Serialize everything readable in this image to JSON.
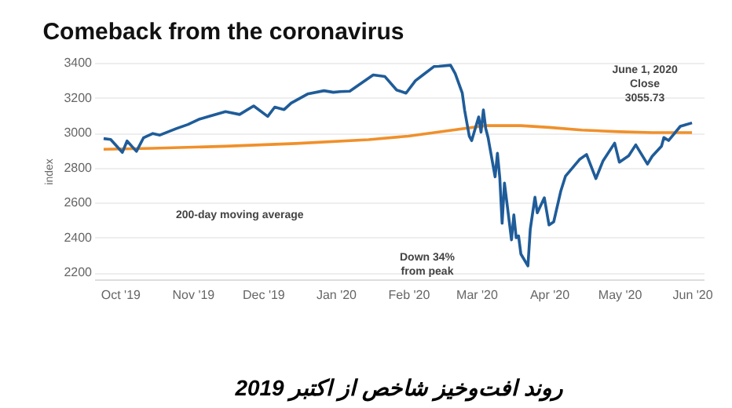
{
  "chart_data": {
    "type": "line",
    "title": "Comeback from the coronavirus",
    "ylabel": "index",
    "xlim": [
      "2019-09-20",
      "2020-06-06"
    ],
    "xticks": [
      {
        "value": "2019-10-01",
        "label": "Oct '19"
      },
      {
        "value": "2019-11-01",
        "label": "Nov '19"
      },
      {
        "value": "2019-12-01",
        "label": "Dec '19"
      },
      {
        "value": "2020-01-01",
        "label": "Jan '20"
      },
      {
        "value": "2020-02-01",
        "label": "Feb '20"
      },
      {
        "value": "2020-03-01",
        "label": "Mar '20"
      },
      {
        "value": "2020-04-01",
        "label": "Apr '20"
      },
      {
        "value": "2020-05-01",
        "label": "May '20"
      },
      {
        "value": "2020-06-01",
        "label": "Jun '20"
      }
    ],
    "ylim": [
      2160,
      3400
    ],
    "yticks": [
      2200,
      2400,
      2600,
      2800,
      3000,
      3200,
      3400
    ],
    "grid": "y",
    "legend": false,
    "line_style": "solid",
    "marker": "none",
    "series": [
      {
        "color": "#f0902a",
        "x": [
          "2019-09-24",
          "2019-10-15",
          "2019-11-15",
          "2019-12-15",
          "2020-01-15",
          "2020-02-01",
          "2020-02-20",
          "2020-03-05",
          "2020-03-20",
          "2020-04-01",
          "2020-04-15",
          "2020-05-01",
          "2020-05-15",
          "2020-06-01"
        ],
        "values": [
          2905,
          2910,
          2922,
          2938,
          2960,
          2980,
          3015,
          3040,
          3040,
          3030,
          3015,
          3005,
          3000,
          3000
        ]
      },
      {
        "color": "#1f5c99",
        "x": [
          "2019-09-24",
          "2019-09-27",
          "2019-10-02",
          "2019-10-04",
          "2019-10-08",
          "2019-10-11",
          "2019-10-15",
          "2019-10-18",
          "2019-10-25",
          "2019-10-30",
          "2019-11-04",
          "2019-11-08",
          "2019-11-15",
          "2019-11-21",
          "2019-11-27",
          "2019-12-03",
          "2019-12-06",
          "2019-12-10",
          "2019-12-13",
          "2019-12-20",
          "2019-12-27",
          "2019-12-31",
          "2020-01-03",
          "2020-01-07",
          "2020-01-10",
          "2020-01-17",
          "2020-01-22",
          "2020-01-27",
          "2020-01-31",
          "2020-02-04",
          "2020-02-07",
          "2020-02-12",
          "2020-02-14",
          "2020-02-19",
          "2020-02-21",
          "2020-02-24",
          "2020-02-25",
          "2020-02-27",
          "2020-02-28",
          "2020-03-02",
          "2020-03-03",
          "2020-03-04",
          "2020-03-05",
          "2020-03-06",
          "2020-03-09",
          "2020-03-10",
          "2020-03-11",
          "2020-03-12",
          "2020-03-13",
          "2020-03-16",
          "2020-03-17",
          "2020-03-18",
          "2020-03-19",
          "2020-03-20",
          "2020-03-23",
          "2020-03-24",
          "2020-03-26",
          "2020-03-27",
          "2020-03-30",
          "2020-04-01",
          "2020-04-03",
          "2020-04-06",
          "2020-04-08",
          "2020-04-14",
          "2020-04-17",
          "2020-04-21",
          "2020-04-24",
          "2020-04-29",
          "2020-05-01",
          "2020-05-05",
          "2020-05-08",
          "2020-05-13",
          "2020-05-15",
          "2020-05-19",
          "2020-05-20",
          "2020-05-22",
          "2020-05-27",
          "2020-05-29",
          "2020-06-01"
        ],
        "values": [
          2966,
          2961,
          2887,
          2952,
          2893,
          2970,
          2995,
          2986,
          3023,
          3047,
          3078,
          3093,
          3120,
          3104,
          3153,
          3093,
          3146,
          3132,
          3169,
          3221,
          3240,
          3231,
          3235,
          3237,
          3265,
          3330,
          3321,
          3244,
          3226,
          3297,
          3328,
          3379,
          3380,
          3386,
          3338,
          3226,
          3128,
          2979,
          2954,
          3090,
          3003,
          3130,
          3024,
          2972,
          2747,
          2882,
          2741,
          2481,
          2711,
          2386,
          2529,
          2398,
          2409,
          2305,
          2237,
          2447,
          2630,
          2541,
          2627,
          2471,
          2489,
          2664,
          2750,
          2846,
          2875,
          2737,
          2837,
          2940,
          2831,
          2868,
          2930,
          2820,
          2864,
          2923,
          2972,
          2955,
          3036,
          3044,
          3055.73
        ]
      }
    ],
    "annotations": [
      "200-day moving average",
      {
        "text": "June 1, 2020\nClose\n3055.73",
        "x": "2020-06-01",
        "y": 3055.73
      },
      "Down 34%\nfrom peak",
      "روند افت‌وخیز شاخص از اکتبر 2019"
    ]
  }
}
